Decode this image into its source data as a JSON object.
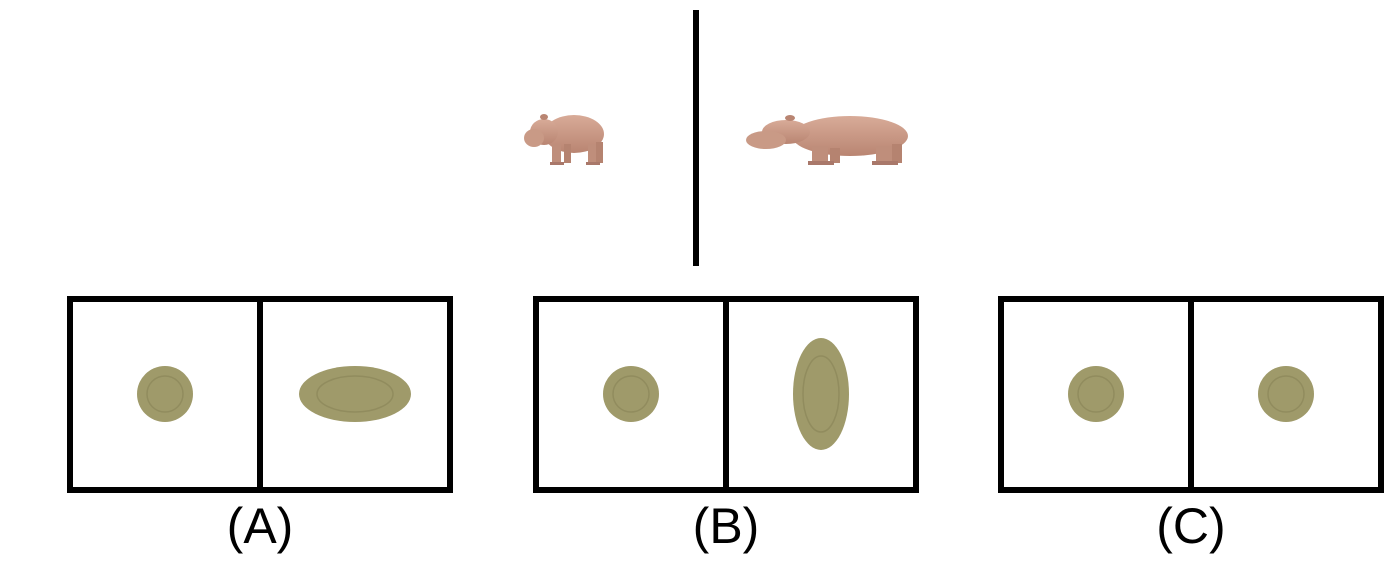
{
  "reference": {
    "left_object": "hippo-small",
    "right_object": "hippo-wide"
  },
  "options": [
    {
      "label": "(A)",
      "left": "round-disc",
      "right": "horizontal-ellipse-disc"
    },
    {
      "label": "(B)",
      "left": "round-disc",
      "right": "vertical-ellipse-disc"
    },
    {
      "label": "(C)",
      "left": "round-disc",
      "right": "round-disc"
    }
  ],
  "colors": {
    "hippo": "#c99a86",
    "disc": "#9f9a6a",
    "line": "#000000"
  }
}
